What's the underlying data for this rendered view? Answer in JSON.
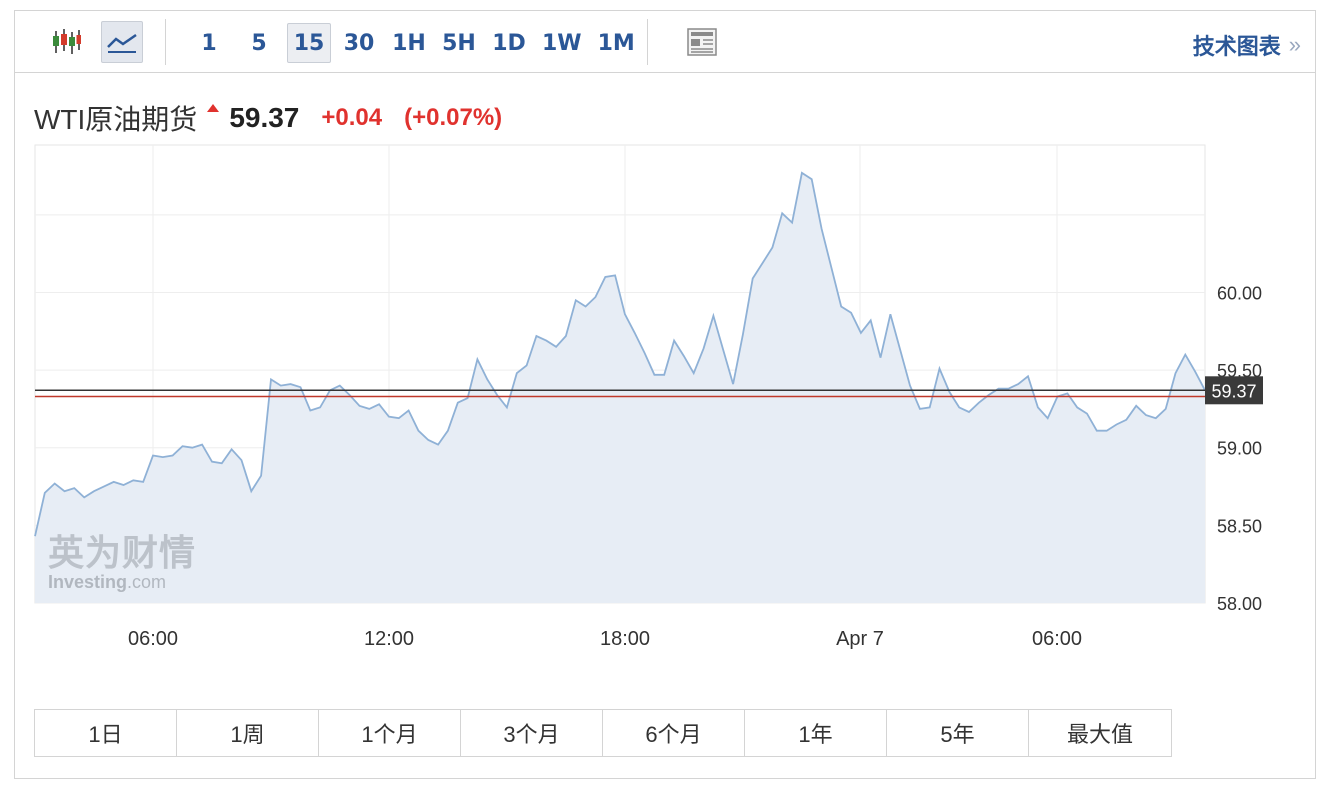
{
  "toolbar": {
    "chart_type_icons": [
      "candlestick-icon",
      "line-chart-icon"
    ],
    "intervals": [
      "1",
      "5",
      "15",
      "30",
      "1H",
      "5H",
      "1D",
      "1W",
      "1M"
    ],
    "active_interval": "15",
    "tech_chart_label": "技术图表",
    "tech_chart_chevron": "»"
  },
  "quote": {
    "name": "WTI原油期货",
    "price": "59.37",
    "change": "+0.04",
    "change_pct": "(+0.07%)",
    "up_color": "#e0322e"
  },
  "watermark": {
    "cn": "英为财情",
    "en_brand": "Investing",
    "en_suffix": ".com"
  },
  "chart_data": {
    "type": "area",
    "line_color": "#8fb1d6",
    "fill_color": "#e7edf5",
    "ylim": [
      58.0,
      60.95
    ],
    "yticks": [
      "58.00",
      "58.50",
      "59.00",
      "59.50",
      "60.00"
    ],
    "ytick_values": [
      58.0,
      58.5,
      59.0,
      59.5,
      60.0
    ],
    "xlabels": [
      "06:00",
      "12:00",
      "18:00",
      "Apr 7",
      "06:00"
    ],
    "current_value": 59.37,
    "current_label": "59.37",
    "previous_close": 59.33,
    "current_line_color": "#333333",
    "previous_close_color": "#c0392b",
    "series": [
      {
        "values": [
          58.43,
          58.71,
          58.77,
          58.72,
          58.74,
          58.68,
          58.72,
          58.75,
          58.78,
          58.76,
          58.79,
          58.78,
          58.95,
          58.94,
          58.95,
          59.01,
          59.0,
          59.02,
          58.91,
          58.9,
          58.99,
          58.92,
          58.72,
          58.82,
          59.44,
          59.4,
          59.41,
          59.39,
          59.24,
          59.26,
          59.37,
          59.4,
          59.34,
          59.27,
          59.25,
          59.28,
          59.2,
          59.19,
          59.24,
          59.11,
          59.05,
          59.02,
          59.11,
          59.29,
          59.32,
          59.57,
          59.44,
          59.34,
          59.26,
          59.48,
          59.53,
          59.72,
          59.69,
          59.65,
          59.72,
          59.95,
          59.91,
          59.97,
          60.1,
          60.11,
          59.86,
          59.74,
          59.61,
          59.47,
          59.47,
          59.69,
          59.59,
          59.48,
          59.64,
          59.85,
          59.63,
          59.41,
          59.73,
          60.09,
          60.19,
          60.29,
          60.51,
          60.45,
          60.77,
          60.73,
          60.41,
          60.16,
          59.91,
          59.87,
          59.74,
          59.82,
          59.58,
          59.86,
          59.63,
          59.4,
          59.25,
          59.26,
          59.51,
          59.36,
          59.26,
          59.23,
          59.29,
          59.34,
          59.38,
          59.38,
          59.41,
          59.46,
          59.26,
          59.19,
          59.33,
          59.35,
          59.26,
          59.22,
          59.11,
          59.11,
          59.15,
          59.18,
          59.27,
          59.21,
          59.19,
          59.25,
          59.48,
          59.6,
          59.49,
          59.37
        ]
      }
    ]
  },
  "ranges": [
    "1日",
    "1周",
    "1个月",
    "3个月",
    "6个月",
    "1年",
    "5年",
    "最大值"
  ]
}
